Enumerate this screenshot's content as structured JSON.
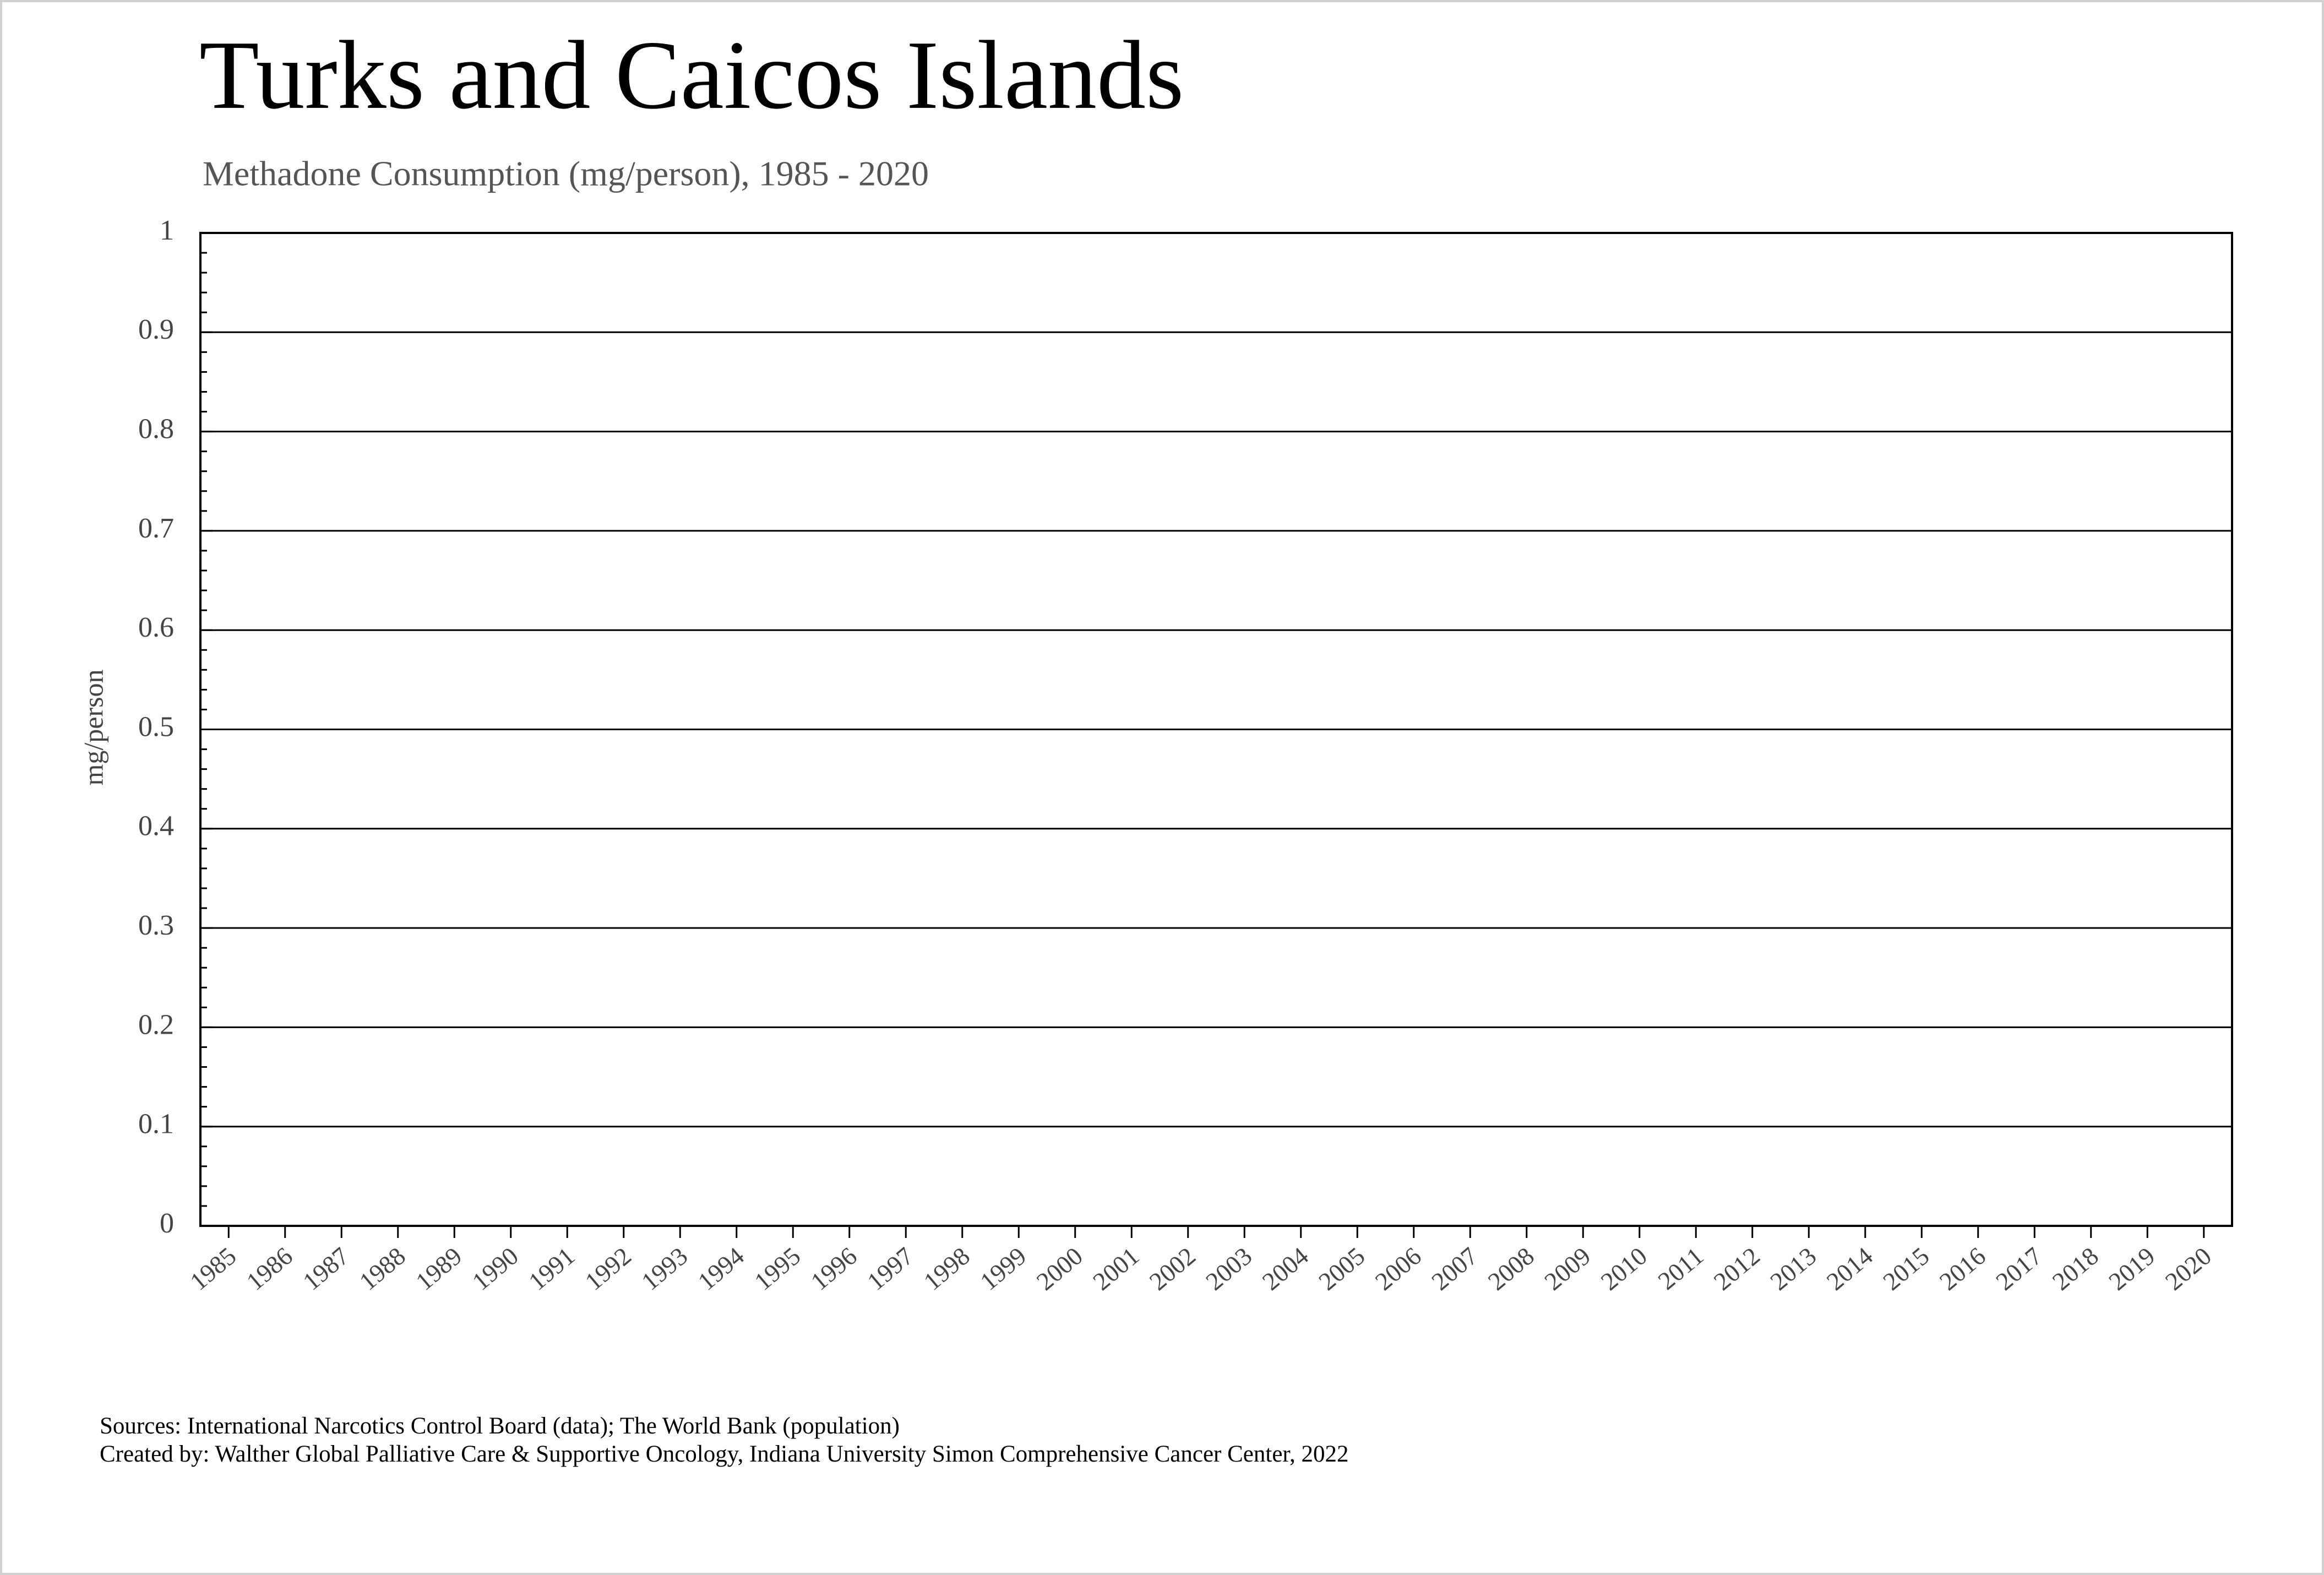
{
  "chart_data": {
    "type": "line",
    "title": "Turks and Caicos Islands",
    "subtitle": "Methadone Consumption (mg/person), 1985 - 2020",
    "y_label": "mg/person",
    "categories": [
      "1985",
      "1986",
      "1987",
      "1988",
      "1989",
      "1990",
      "1991",
      "1992",
      "1993",
      "1994",
      "1995",
      "1996",
      "1997",
      "1998",
      "1999",
      "2000",
      "2001",
      "2002",
      "2003",
      "2004",
      "2005",
      "2006",
      "2007",
      "2008",
      "2009",
      "2010",
      "2011",
      "2012",
      "2013",
      "2014",
      "2015",
      "2016",
      "2017",
      "2018",
      "2019",
      "2020"
    ],
    "values": [
      null,
      null,
      null,
      null,
      null,
      null,
      null,
      null,
      null,
      null,
      null,
      null,
      null,
      null,
      null,
      null,
      null,
      null,
      null,
      null,
      null,
      null,
      null,
      null,
      null,
      null,
      null,
      null,
      null,
      null,
      null,
      null,
      null,
      null,
      null,
      null
    ],
    "color": "#1f4e79",
    "ylim": [
      0,
      1
    ],
    "yticks": [
      0,
      0.1,
      0.2,
      0.3,
      0.4,
      0.5,
      0.6,
      0.7,
      0.8,
      0.9,
      1
    ],
    "grid": true,
    "sources": [
      "Sources: International Narcotics Control Board (data); The World Bank (population)",
      "Created by: Walther Global Palliative Care & Supportive Oncology, Indiana University Simon Comprehensive Cancer Center, 2022"
    ]
  }
}
